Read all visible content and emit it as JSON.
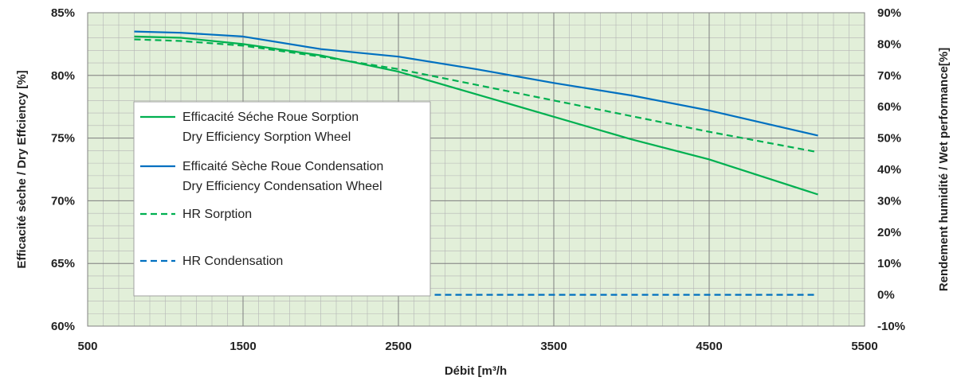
{
  "chart_data": {
    "type": "line",
    "title": "",
    "xlabel": "Débit [m³/h",
    "ylabel": "Efficacité sèche / Dry Effciency [%]",
    "y2label": "Rendement humidité / Wet performance[%]",
    "xlim": [
      500,
      5500
    ],
    "ylim": [
      60,
      85
    ],
    "y2lim": [
      -10,
      90
    ],
    "x_ticks": [
      "500",
      "1500",
      "2500",
      "3500",
      "4500",
      "5500"
    ],
    "y_ticks": [
      "60%",
      "65%",
      "70%",
      "75%",
      "80%",
      "85%"
    ],
    "y2_ticks": [
      "-10%",
      "0%",
      "10%",
      "20%",
      "30%",
      "40%",
      "50%",
      "60%",
      "70%",
      "80%",
      "90%"
    ],
    "grid": true,
    "plot_background": "#e2efd9",
    "legend_placement": "center-left",
    "series": [
      {
        "name": "Efficacité Séche Roue Sorption",
        "name2": "Dry Efficiency Sorption Wheel",
        "axis": "left",
        "color": "#00b050",
        "style": "solid",
        "x": [
          800,
          1100,
          1500,
          2000,
          2500,
          3000,
          3500,
          4000,
          4500,
          5200
        ],
        "values": [
          83.1,
          83.0,
          82.5,
          81.6,
          80.3,
          78.5,
          76.7,
          74.9,
          73.3,
          70.5
        ]
      },
      {
        "name": "Efficaité Sèche Roue Condensation",
        "name2": "Dry Efficiency Condensation Wheel",
        "axis": "left",
        "color": "#0070c0",
        "style": "solid",
        "x": [
          800,
          1100,
          1500,
          2000,
          2500,
          3000,
          3500,
          4000,
          4500,
          5200
        ],
        "values": [
          83.5,
          83.4,
          83.1,
          82.1,
          81.5,
          80.5,
          79.4,
          78.4,
          77.2,
          75.2
        ]
      },
      {
        "name": "HR Sorption",
        "axis": "right",
        "color": "#00b050",
        "style": "dashed",
        "x": [
          800,
          1100,
          1500,
          2000,
          2500,
          3000,
          3500,
          4000,
          4500,
          5200
        ],
        "values": [
          81.5,
          81.0,
          79.5,
          76.0,
          72.0,
          67.0,
          62.0,
          57.0,
          52.0,
          45.5
        ]
      },
      {
        "name": "HR Condensation",
        "axis": "right",
        "color": "#0070c0",
        "style": "dashed",
        "x": [
          800,
          1100,
          1500,
          2000,
          2500,
          3000,
          3500,
          4000,
          4500,
          5200
        ],
        "values": [
          0,
          0,
          0,
          0,
          0,
          0,
          0,
          0,
          0,
          0
        ]
      }
    ]
  }
}
